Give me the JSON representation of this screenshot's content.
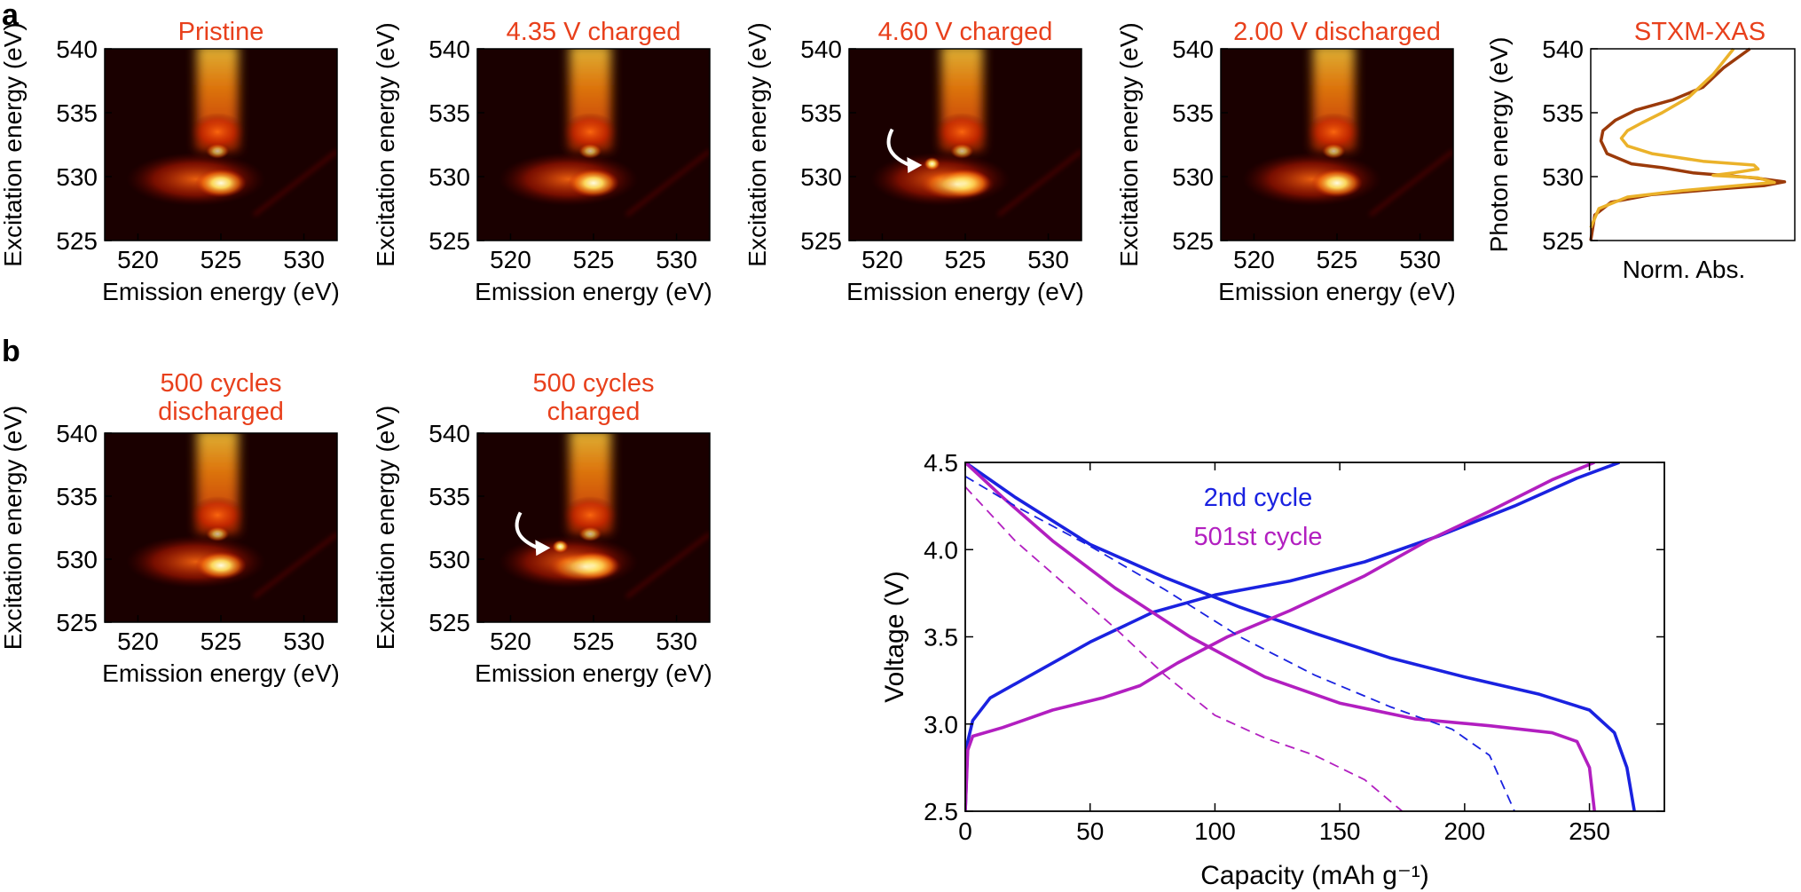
{
  "figure": {
    "label_a": "a",
    "label_b": "b",
    "colors": {
      "title": "#e8401c",
      "axis": "#000000",
      "arrow": "#ffffff",
      "blue": "#1a22e0",
      "magenta": "#b21fc0",
      "xas_dark": "#9b3a0a",
      "xas_light": "#ebb22a"
    }
  },
  "rixs_axes": {
    "xlabel": "Emission energy (eV)",
    "ylabel": "Excitation energy (eV)",
    "xticks": [
      520,
      525,
      530
    ],
    "yticks": [
      525,
      530,
      535,
      540
    ],
    "xlim": [
      518,
      532
    ],
    "ylim": [
      525,
      540
    ]
  },
  "rixs_maps": [
    {
      "id": "pristine",
      "title_lines": [
        "Pristine"
      ],
      "intensity_scale": 1.0,
      "feature_531": false
    },
    {
      "id": "v435",
      "title_lines": [
        "4.35 V charged"
      ],
      "intensity_scale": 1.0,
      "feature_531": false
    },
    {
      "id": "v460",
      "title_lines": [
        "4.60 V charged"
      ],
      "intensity_scale": 1.0,
      "feature_531": true
    },
    {
      "id": "v200",
      "title_lines": [
        "2.00 V discharged"
      ],
      "intensity_scale": 1.0,
      "feature_531": false
    },
    {
      "id": "c500d",
      "title_lines": [
        "500 cycles",
        "discharged"
      ],
      "intensity_scale": 1.0,
      "feature_531": false
    },
    {
      "id": "c500c",
      "title_lines": [
        "500 cycles",
        "charged"
      ],
      "intensity_scale": 1.0,
      "feature_531": true
    }
  ],
  "chart_data": [
    {
      "type": "line",
      "title": "STXM-XAS",
      "xlabel": "Norm. Abs.",
      "ylabel": "Photon energy (eV)",
      "ylim": [
        525,
        540
      ],
      "yticks": [
        525,
        530,
        535,
        540
      ],
      "xlim": [
        0,
        1
      ],
      "series": [
        {
          "name": "dark",
          "color": "#9b3a0a",
          "points": [
            [
              0.0,
              525.0
            ],
            [
              0.02,
              527.0
            ],
            [
              0.1,
              528.0
            ],
            [
              0.3,
              528.6
            ],
            [
              0.6,
              529.0
            ],
            [
              0.85,
              529.3
            ],
            [
              0.95,
              529.6
            ],
            [
              0.8,
              529.9
            ],
            [
              0.5,
              530.3
            ],
            [
              0.35,
              530.7
            ],
            [
              0.2,
              531.0
            ],
            [
              0.08,
              531.8
            ],
            [
              0.05,
              532.8
            ],
            [
              0.06,
              533.6
            ],
            [
              0.12,
              534.4
            ],
            [
              0.22,
              535.2
            ],
            [
              0.4,
              536.0
            ],
            [
              0.55,
              537.0
            ],
            [
              0.65,
              538.5
            ],
            [
              0.78,
              540.0
            ]
          ]
        },
        {
          "name": "light",
          "color": "#ebb22a",
          "points": [
            [
              0.0,
              526.0
            ],
            [
              0.04,
              527.5
            ],
            [
              0.18,
              528.4
            ],
            [
              0.45,
              528.9
            ],
            [
              0.72,
              529.3
            ],
            [
              0.9,
              529.55
            ],
            [
              0.82,
              529.9
            ],
            [
              0.6,
              530.1
            ],
            [
              0.7,
              530.3
            ],
            [
              0.82,
              530.6
            ],
            [
              0.8,
              530.9
            ],
            [
              0.55,
              531.2
            ],
            [
              0.3,
              531.8
            ],
            [
              0.18,
              532.4
            ],
            [
              0.15,
              533.0
            ],
            [
              0.18,
              533.6
            ],
            [
              0.25,
              534.2
            ],
            [
              0.35,
              535.0
            ],
            [
              0.48,
              536.2
            ],
            [
              0.6,
              538.0
            ],
            [
              0.7,
              540.0
            ]
          ]
        }
      ]
    },
    {
      "type": "line",
      "xlabel": "Capacity (mAh g⁻¹)",
      "ylabel": "Voltage (V)",
      "xlim": [
        0,
        280
      ],
      "ylim": [
        2.5,
        4.5
      ],
      "xticks": [
        0,
        50,
        100,
        150,
        200,
        250
      ],
      "yticks": [
        2.5,
        3.0,
        3.5,
        4.0,
        4.5
      ],
      "legend": [
        "2nd cycle",
        "501st cycle"
      ],
      "series": [
        {
          "name": "2nd cycle",
          "role": "charge",
          "color": "#1a22e0",
          "dashed": false,
          "points": [
            [
              0,
              2.5
            ],
            [
              1,
              2.9
            ],
            [
              3,
              3.02
            ],
            [
              10,
              3.15
            ],
            [
              25,
              3.27
            ],
            [
              50,
              3.47
            ],
            [
              75,
              3.64
            ],
            [
              100,
              3.74
            ],
            [
              130,
              3.82
            ],
            [
              160,
              3.93
            ],
            [
              190,
              4.08
            ],
            [
              220,
              4.25
            ],
            [
              245,
              4.41
            ],
            [
              262,
              4.5
            ]
          ]
        },
        {
          "name": "2nd cycle",
          "role": "discharge",
          "color": "#1a22e0",
          "dashed": false,
          "points": [
            [
              0,
              4.5
            ],
            [
              20,
              4.3
            ],
            [
              50,
              4.03
            ],
            [
              80,
              3.84
            ],
            [
              110,
              3.67
            ],
            [
              140,
              3.52
            ],
            [
              170,
              3.38
            ],
            [
              200,
              3.27
            ],
            [
              230,
              3.17
            ],
            [
              250,
              3.08
            ],
            [
              260,
              2.95
            ],
            [
              265,
              2.75
            ],
            [
              268,
              2.5
            ]
          ]
        },
        {
          "name": "501st cycle",
          "role": "charge",
          "color": "#b21fc0",
          "dashed": false,
          "points": [
            [
              0,
              2.5
            ],
            [
              1,
              2.85
            ],
            [
              3,
              2.93
            ],
            [
              15,
              2.98
            ],
            [
              35,
              3.08
            ],
            [
              55,
              3.15
            ],
            [
              70,
              3.22
            ],
            [
              85,
              3.35
            ],
            [
              105,
              3.5
            ],
            [
              130,
              3.65
            ],
            [
              160,
              3.85
            ],
            [
              185,
              4.05
            ],
            [
              210,
              4.22
            ],
            [
              235,
              4.4
            ],
            [
              252,
              4.5
            ]
          ]
        },
        {
          "name": "501st cycle",
          "role": "discharge",
          "color": "#b21fc0",
          "dashed": false,
          "points": [
            [
              0,
              4.5
            ],
            [
              15,
              4.3
            ],
            [
              35,
              4.05
            ],
            [
              60,
              3.78
            ],
            [
              90,
              3.5
            ],
            [
              120,
              3.27
            ],
            [
              150,
              3.12
            ],
            [
              180,
              3.03
            ],
            [
              210,
              2.99
            ],
            [
              235,
              2.95
            ],
            [
              245,
              2.9
            ],
            [
              250,
              2.75
            ],
            [
              252,
              2.5
            ]
          ]
        },
        {
          "name": "2nd cycle",
          "role": "dashed",
          "color": "#1a22e0",
          "dashed": true,
          "points": [
            [
              0,
              4.42
            ],
            [
              20,
              4.25
            ],
            [
              50,
              4.02
            ],
            [
              80,
              3.77
            ],
            [
              110,
              3.5
            ],
            [
              140,
              3.28
            ],
            [
              170,
              3.1
            ],
            [
              195,
              2.97
            ],
            [
              210,
              2.82
            ],
            [
              220,
              2.5
            ]
          ]
        },
        {
          "name": "501st cycle",
          "role": "dashed",
          "color": "#b21fc0",
          "dashed": true,
          "points": [
            [
              0,
              4.36
            ],
            [
              20,
              4.05
            ],
            [
              40,
              3.8
            ],
            [
              60,
              3.55
            ],
            [
              80,
              3.28
            ],
            [
              100,
              3.05
            ],
            [
              120,
              2.92
            ],
            [
              140,
              2.82
            ],
            [
              160,
              2.68
            ],
            [
              175,
              2.5
            ]
          ]
        }
      ]
    }
  ]
}
